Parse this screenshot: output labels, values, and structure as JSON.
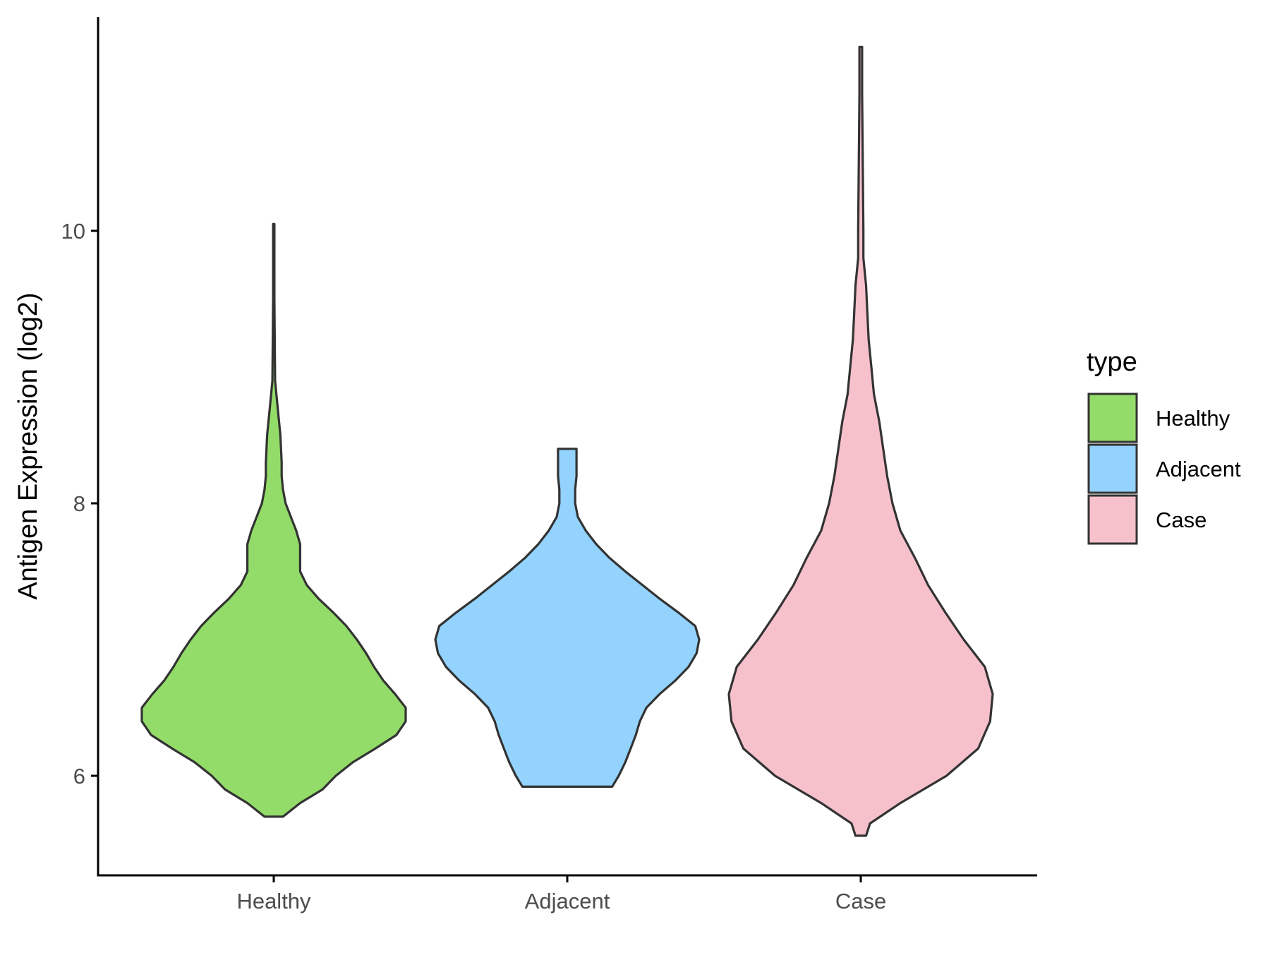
{
  "chart_data": {
    "type": "violin",
    "title": "",
    "xlabel": "",
    "ylabel": "Antigen Expression (log2)",
    "yticks": [
      6,
      8,
      10
    ],
    "ylim": [
      5.28,
      11.65
    ],
    "grid": false,
    "categories": [
      "Healthy",
      "Adjacent",
      "Case"
    ],
    "colors": [
      "#93dc69",
      "#93d3fe",
      "#f7c1cc"
    ],
    "outline_color": "#333333",
    "legend": {
      "title": "type",
      "position": "right",
      "entries": [
        "Healthy",
        "Adjacent",
        "Case"
      ]
    },
    "series": [
      {
        "category": "Healthy",
        "min": 5.7,
        "max": 10.05,
        "density_profile": [
          [
            5.7,
            0.07
          ],
          [
            5.8,
            0.2
          ],
          [
            5.9,
            0.37
          ],
          [
            6.0,
            0.47
          ],
          [
            6.1,
            0.6
          ],
          [
            6.2,
            0.77
          ],
          [
            6.3,
            0.93
          ],
          [
            6.4,
            1.0
          ],
          [
            6.5,
            1.0
          ],
          [
            6.6,
            0.92
          ],
          [
            6.7,
            0.83
          ],
          [
            6.8,
            0.76
          ],
          [
            6.9,
            0.7
          ],
          [
            7.0,
            0.63
          ],
          [
            7.1,
            0.55
          ],
          [
            7.2,
            0.45
          ],
          [
            7.3,
            0.34
          ],
          [
            7.4,
            0.25
          ],
          [
            7.5,
            0.2
          ],
          [
            7.6,
            0.2
          ],
          [
            7.7,
            0.2
          ],
          [
            7.8,
            0.17
          ],
          [
            7.9,
            0.13
          ],
          [
            8.0,
            0.09
          ],
          [
            8.1,
            0.07
          ],
          [
            8.2,
            0.06
          ],
          [
            8.3,
            0.06
          ],
          [
            8.5,
            0.05
          ],
          [
            8.7,
            0.03
          ],
          [
            8.9,
            0.01
          ],
          [
            9.5,
            0.005
          ],
          [
            10.05,
            0.005
          ]
        ]
      },
      {
        "category": "Adjacent",
        "min": 5.92,
        "max": 8.4,
        "density_profile": [
          [
            5.92,
            0.34
          ],
          [
            6.0,
            0.39
          ],
          [
            6.1,
            0.44
          ],
          [
            6.2,
            0.48
          ],
          [
            6.3,
            0.52
          ],
          [
            6.4,
            0.55
          ],
          [
            6.5,
            0.6
          ],
          [
            6.6,
            0.7
          ],
          [
            6.7,
            0.82
          ],
          [
            6.8,
            0.92
          ],
          [
            6.9,
            0.98
          ],
          [
            7.0,
            1.0
          ],
          [
            7.1,
            0.97
          ],
          [
            7.2,
            0.84
          ],
          [
            7.3,
            0.7
          ],
          [
            7.4,
            0.57
          ],
          [
            7.5,
            0.44
          ],
          [
            7.6,
            0.32
          ],
          [
            7.7,
            0.22
          ],
          [
            7.8,
            0.14
          ],
          [
            7.9,
            0.08
          ],
          [
            8.0,
            0.06
          ],
          [
            8.1,
            0.06
          ],
          [
            8.2,
            0.07
          ],
          [
            8.3,
            0.07
          ],
          [
            8.4,
            0.07
          ]
        ]
      },
      {
        "category": "Case",
        "min": 5.56,
        "max": 11.35,
        "density_profile": [
          [
            5.56,
            0.04
          ],
          [
            5.65,
            0.07
          ],
          [
            5.8,
            0.3
          ],
          [
            6.0,
            0.65
          ],
          [
            6.2,
            0.89
          ],
          [
            6.4,
            0.98
          ],
          [
            6.6,
            1.0
          ],
          [
            6.8,
            0.94
          ],
          [
            7.0,
            0.78
          ],
          [
            7.2,
            0.64
          ],
          [
            7.4,
            0.51
          ],
          [
            7.6,
            0.41
          ],
          [
            7.8,
            0.3
          ],
          [
            8.0,
            0.24
          ],
          [
            8.2,
            0.2
          ],
          [
            8.4,
            0.17
          ],
          [
            8.6,
            0.14
          ],
          [
            8.8,
            0.1
          ],
          [
            9.0,
            0.08
          ],
          [
            9.2,
            0.06
          ],
          [
            9.4,
            0.05
          ],
          [
            9.6,
            0.04
          ],
          [
            9.8,
            0.02
          ],
          [
            10.0,
            0.02
          ],
          [
            10.5,
            0.015
          ],
          [
            11.0,
            0.01
          ],
          [
            11.35,
            0.01
          ]
        ]
      }
    ]
  }
}
